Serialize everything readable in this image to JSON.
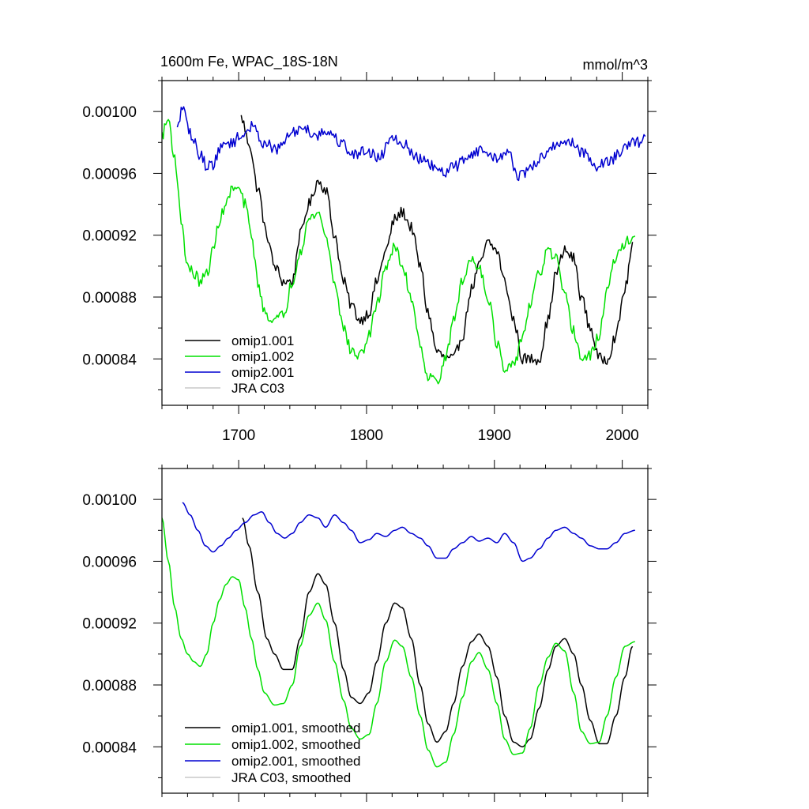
{
  "chart_data": [
    {
      "type": "line",
      "title": "1600m Fe, WPAC_18S-18N",
      "units": "mmol/m^3",
      "xlabel": "",
      "ylabel": "",
      "xlim": [
        1640,
        2020
      ],
      "ylim": [
        0.00081,
        0.00102
      ],
      "xticks": [
        1700,
        1800,
        1900,
        2000
      ],
      "show_xtick_labels": true,
      "yticks": [
        0.00084,
        0.00088,
        0.00092,
        0.00096,
        0.001
      ],
      "ytick_labels": [
        "0.00084",
        "0.00088",
        "0.00092",
        "0.00096",
        "0.00100"
      ],
      "legend_position": "lower-left",
      "noisy": true,
      "series": [
        {
          "name": "omip1.001",
          "color": "#000000",
          "x": [
            1702,
            1708,
            1715,
            1722,
            1728,
            1735,
            1742,
            1748,
            1755,
            1762,
            1768,
            1775,
            1782,
            1788,
            1795,
            1802,
            1808,
            1815,
            1822,
            1828,
            1835,
            1842,
            1848,
            1855,
            1862,
            1868,
            1875,
            1882,
            1888,
            1895,
            1902,
            1908,
            1915,
            1922,
            1928,
            1935,
            1942,
            1948,
            1955,
            1962,
            1968,
            1975,
            1982,
            1988,
            1995,
            2002,
            2008
          ],
          "values": [
            0.000996,
            0.00098,
            0.00095,
            0.00092,
            0.0009,
            0.00089,
            0.00089,
            0.00092,
            0.00094,
            0.000955,
            0.00095,
            0.00092,
            0.00089,
            0.000875,
            0.000865,
            0.00087,
            0.00089,
            0.00091,
            0.00093,
            0.000935,
            0.000925,
            0.0009,
            0.00087,
            0.000845,
            0.00084,
            0.00084,
            0.000855,
            0.000885,
            0.0009,
            0.000915,
            0.00091,
            0.00089,
            0.000865,
            0.00084,
            0.00084,
            0.00084,
            0.000865,
            0.000895,
            0.00091,
            0.000905,
            0.00088,
            0.00086,
            0.00084,
            0.00084,
            0.000855,
            0.000885,
            0.000912
          ]
        },
        {
          "name": "omip1.002",
          "color": "#00e000",
          "x": [
            1640,
            1645,
            1650,
            1655,
            1660,
            1665,
            1670,
            1675,
            1680,
            1685,
            1690,
            1695,
            1700,
            1705,
            1710,
            1715,
            1720,
            1728,
            1735,
            1742,
            1748,
            1755,
            1762,
            1768,
            1775,
            1782,
            1788,
            1795,
            1802,
            1808,
            1815,
            1822,
            1828,
            1835,
            1842,
            1848,
            1855,
            1862,
            1868,
            1875,
            1882,
            1888,
            1895,
            1902,
            1908,
            1915,
            1922,
            1928,
            1935,
            1942,
            1948,
            1955,
            1962,
            1968,
            1975,
            1982,
            1988,
            1995,
            2002,
            2010
          ],
          "values": [
            0.000985,
            0.000995,
            0.00097,
            0.00093,
            0.0009,
            0.000895,
            0.00089,
            0.000895,
            0.00091,
            0.00093,
            0.00094,
            0.00095,
            0.00095,
            0.00094,
            0.00092,
            0.00089,
            0.00087,
            0.000865,
            0.000868,
            0.00089,
            0.00091,
            0.00093,
            0.000935,
            0.00092,
            0.00089,
            0.00086,
            0.000845,
            0.000842,
            0.000855,
            0.000875,
            0.0009,
            0.000912,
            0.0009,
            0.00088,
            0.00085,
            0.000828,
            0.000826,
            0.00084,
            0.000865,
            0.00089,
            0.000905,
            0.0009,
            0.00088,
            0.00085,
            0.000832,
            0.000835,
            0.000855,
            0.000875,
            0.000895,
            0.00091,
            0.000905,
            0.00088,
            0.000858,
            0.00084,
            0.000842,
            0.000855,
            0.000885,
            0.000905,
            0.000915,
            0.00092
          ]
        },
        {
          "name": "omip2.001",
          "color": "#0000d0",
          "x": [
            1652,
            1656,
            1660,
            1665,
            1670,
            1675,
            1680,
            1685,
            1690,
            1695,
            1700,
            1710,
            1720,
            1730,
            1740,
            1750,
            1760,
            1770,
            1780,
            1790,
            1800,
            1810,
            1820,
            1830,
            1840,
            1850,
            1860,
            1870,
            1880,
            1890,
            1900,
            1910,
            1920,
            1930,
            1940,
            1950,
            1960,
            1970,
            1980,
            1990,
            2000,
            2010,
            2018
          ],
          "values": [
            0.000988,
            0.001004,
            0.00099,
            0.00098,
            0.000972,
            0.000965,
            0.000966,
            0.000975,
            0.00098,
            0.00098,
            0.000983,
            0.00099,
            0.00098,
            0.000975,
            0.000985,
            0.00099,
            0.000985,
            0.000987,
            0.00098,
            0.000972,
            0.000975,
            0.00097,
            0.000985,
            0.000978,
            0.00097,
            0.000965,
            0.00096,
            0.000965,
            0.000972,
            0.000975,
            0.00097,
            0.000973,
            0.000958,
            0.000965,
            0.000972,
            0.00098,
            0.00098,
            0.000973,
            0.000965,
            0.000968,
            0.000975,
            0.00098,
            0.000982
          ]
        },
        {
          "name": "JRA C03",
          "color": "#c8c8c8",
          "x": [],
          "values": []
        }
      ]
    },
    {
      "type": "line",
      "title": "",
      "units": "",
      "xlabel": "",
      "ylabel": "",
      "xlim": [
        1640,
        2020
      ],
      "ylim": [
        0.00081,
        0.00102
      ],
      "xticks": [
        1700,
        1800,
        1900,
        2000
      ],
      "show_xtick_labels": false,
      "yticks": [
        0.00084,
        0.00088,
        0.00092,
        0.00096,
        0.001
      ],
      "ytick_labels": [
        "0.00084",
        "0.00088",
        "0.00092",
        "0.00096",
        "0.00100"
      ],
      "legend_position": "lower-left",
      "noisy": false,
      "series": [
        {
          "name": "omip1.001, smoothed",
          "color": "#000000",
          "x": [
            1703,
            1708,
            1715,
            1722,
            1728,
            1735,
            1742,
            1748,
            1755,
            1762,
            1768,
            1775,
            1782,
            1788,
            1795,
            1802,
            1808,
            1815,
            1822,
            1828,
            1835,
            1842,
            1848,
            1855,
            1862,
            1868,
            1875,
            1882,
            1888,
            1895,
            1902,
            1908,
            1915,
            1922,
            1928,
            1935,
            1942,
            1948,
            1955,
            1962,
            1968,
            1975,
            1982,
            1988,
            1995,
            2002,
            2008
          ],
          "values": [
            0.000988,
            0.00097,
            0.00094,
            0.00091,
            0.0009,
            0.00089,
            0.00089,
            0.00091,
            0.00094,
            0.000952,
            0.000945,
            0.00092,
            0.00089,
            0.000872,
            0.000868,
            0.000875,
            0.000895,
            0.00092,
            0.000933,
            0.00093,
            0.00091,
            0.00088,
            0.000855,
            0.000843,
            0.00085,
            0.000868,
            0.000892,
            0.000908,
            0.000913,
            0.000905,
            0.000885,
            0.00086,
            0.000843,
            0.00084,
            0.000845,
            0.000865,
            0.00089,
            0.000905,
            0.00091,
            0.0009,
            0.00088,
            0.000857,
            0.000842,
            0.000842,
            0.00086,
            0.000885,
            0.000905
          ]
        },
        {
          "name": "omip1.002, smoothed",
          "color": "#00e000",
          "x": [
            1640,
            1645,
            1650,
            1655,
            1660,
            1665,
            1670,
            1675,
            1680,
            1685,
            1690,
            1695,
            1700,
            1705,
            1710,
            1715,
            1720,
            1728,
            1735,
            1742,
            1748,
            1755,
            1762,
            1768,
            1775,
            1782,
            1788,
            1795,
            1802,
            1808,
            1815,
            1822,
            1828,
            1835,
            1842,
            1848,
            1855,
            1862,
            1868,
            1875,
            1882,
            1888,
            1895,
            1902,
            1908,
            1915,
            1922,
            1928,
            1935,
            1942,
            1948,
            1955,
            1962,
            1968,
            1975,
            1982,
            1988,
            1995,
            2002,
            2010
          ],
          "values": [
            0.000988,
            0.00096,
            0.00093,
            0.00091,
            0.0009,
            0.000895,
            0.000892,
            0.0009,
            0.00092,
            0.000935,
            0.000945,
            0.00095,
            0.000948,
            0.00093,
            0.00091,
            0.00089,
            0.000875,
            0.000867,
            0.000868,
            0.00088,
            0.000905,
            0.000925,
            0.000933,
            0.000922,
            0.000895,
            0.00087,
            0.000852,
            0.000845,
            0.000848,
            0.000868,
            0.000895,
            0.000909,
            0.000905,
            0.000885,
            0.00086,
            0.000838,
            0.000827,
            0.00083,
            0.000848,
            0.000872,
            0.000895,
            0.000901,
            0.00089,
            0.000868,
            0.000845,
            0.000835,
            0.000836,
            0.000852,
            0.00088,
            0.000898,
            0.000907,
            0.000902,
            0.000875,
            0.00085,
            0.000842,
            0.000843,
            0.00086,
            0.000885,
            0.000905,
            0.000908
          ]
        },
        {
          "name": "omip2.001, smoothed",
          "color": "#0000d0",
          "x": [
            1656,
            1662,
            1668,
            1674,
            1680,
            1686,
            1692,
            1698,
            1705,
            1712,
            1718,
            1724,
            1730,
            1736,
            1742,
            1748,
            1755,
            1762,
            1768,
            1775,
            1782,
            1788,
            1795,
            1802,
            1808,
            1815,
            1822,
            1828,
            1835,
            1842,
            1848,
            1855,
            1862,
            1868,
            1875,
            1882,
            1888,
            1895,
            1902,
            1908,
            1915,
            1922,
            1928,
            1935,
            1942,
            1948,
            1955,
            1962,
            1968,
            1975,
            1982,
            1988,
            1995,
            2002,
            2010
          ],
          "values": [
            0.000998,
            0.00099,
            0.00098,
            0.00097,
            0.000966,
            0.00097,
            0.000975,
            0.00098,
            0.000985,
            0.00099,
            0.000992,
            0.000985,
            0.000978,
            0.000975,
            0.000978,
            0.000985,
            0.00099,
            0.000988,
            0.000982,
            0.00099,
            0.000985,
            0.00098,
            0.000972,
            0.000974,
            0.000978,
            0.000976,
            0.00098,
            0.000982,
            0.000978,
            0.000975,
            0.00097,
            0.000962,
            0.000962,
            0.000968,
            0.000972,
            0.000976,
            0.000973,
            0.000975,
            0.000972,
            0.000978,
            0.000972,
            0.00096,
            0.000962,
            0.000968,
            0.000975,
            0.00098,
            0.000982,
            0.000978,
            0.000975,
            0.00097,
            0.000968,
            0.000968,
            0.000972,
            0.000978,
            0.00098
          ]
        },
        {
          "name": "JRA C03, smoothed",
          "color": "#c8c8c8",
          "x": [],
          "values": []
        }
      ]
    }
  ]
}
